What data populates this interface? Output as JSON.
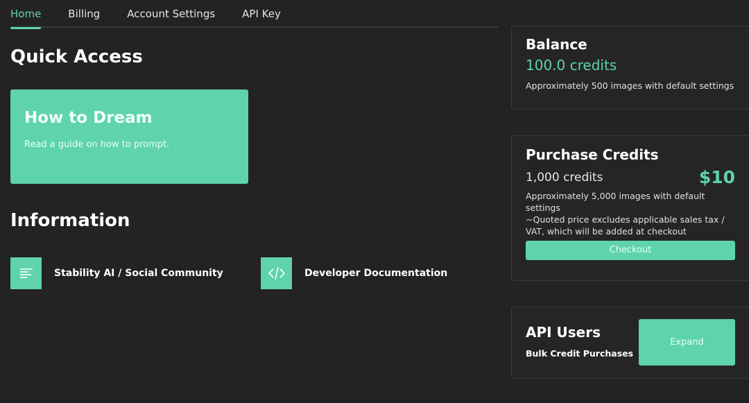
{
  "tabs": [
    "Home",
    "Billing",
    "Account Settings",
    "API Key"
  ],
  "quick_access": {
    "title": "Quick Access",
    "card_title": "How to Dream",
    "card_subtitle": "Read a guide on how to prompt."
  },
  "information": {
    "title": "Information",
    "links": [
      {
        "label": "Stability AI / Social Community",
        "icon": "document-lines-icon"
      },
      {
        "label": "Developer Documentation",
        "icon": "code-icon"
      }
    ]
  },
  "balance": {
    "title": "Balance",
    "amount": "100.0 credits",
    "note": "Approximately 500 images with default settings"
  },
  "purchase": {
    "title": "Purchase Credits",
    "credits": "1,000 credits",
    "price": "$10",
    "note1": "Approximately 5,000 images with default settings",
    "note2": "~Quoted price excludes applicable sales tax / VAT, which will be added at checkout",
    "checkout": "Checkout"
  },
  "api_users": {
    "title": "API Users",
    "subtitle": "Bulk Credit Purchases",
    "expand": "Expand"
  },
  "colors": {
    "accent": "#5ed3ad",
    "background": "#232323"
  }
}
